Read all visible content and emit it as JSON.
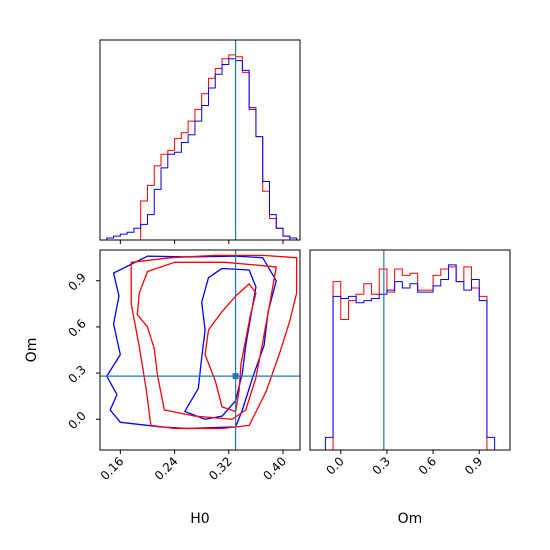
{
  "chart_data": {
    "type": "corner",
    "colors": {
      "series_a": "#ff0000",
      "series_b": "#0000ff",
      "truth": "#1f77b4",
      "axes": "#000000"
    },
    "truth": {
      "H0": 0.33,
      "Om": 0.28
    },
    "axes": {
      "H0": {
        "label": "H0",
        "range": [
          0.13,
          0.425
        ],
        "ticks": [
          0.16,
          0.24,
          0.32,
          0.4
        ],
        "tick_labels": [
          "0.16",
          "0.24",
          "0.32",
          "0.40"
        ]
      },
      "Om": {
        "label": "Om",
        "range": [
          -0.2,
          1.1
        ],
        "ticks": [
          0.0,
          0.3,
          0.6,
          0.9
        ],
        "tick_labels": [
          "0.0",
          "0.3",
          "0.6",
          "0.9"
        ]
      }
    },
    "hist_H0": {
      "bins": [
        0.13,
        0.14,
        0.15,
        0.16,
        0.17,
        0.18,
        0.19,
        0.2,
        0.21,
        0.22,
        0.23,
        0.24,
        0.25,
        0.26,
        0.27,
        0.28,
        0.29,
        0.3,
        0.31,
        0.32,
        0.33,
        0.34,
        0.35,
        0.36,
        0.37,
        0.38,
        0.39,
        0.4,
        0.41,
        0.42
      ],
      "series": [
        {
          "name": "series_a",
          "values": [
            0,
            0,
            0,
            0,
            0,
            0,
            0.2,
            0.28,
            0.38,
            0.44,
            0.46,
            0.52,
            0.55,
            0.61,
            0.67,
            0.75,
            0.83,
            0.88,
            0.93,
            0.95,
            0.94,
            0.86,
            0.68,
            0.53,
            0.25,
            0.11,
            0.06,
            0.02,
            0
          ]
        },
        {
          "name": "series_b",
          "values": [
            0,
            0.01,
            0.02,
            0.03,
            0.04,
            0.06,
            0.08,
            0.13,
            0.26,
            0.37,
            0.44,
            0.45,
            0.5,
            0.54,
            0.61,
            0.69,
            0.78,
            0.85,
            0.9,
            0.93,
            0.92,
            0.87,
            0.67,
            0.53,
            0.3,
            0.13,
            0.06,
            0.02,
            0.01
          ]
        }
      ]
    },
    "hist_Om": {
      "bins": [
        -0.1,
        -0.05,
        0.0,
        0.05,
        0.1,
        0.15,
        0.2,
        0.25,
        0.3,
        0.35,
        0.4,
        0.45,
        0.5,
        0.55,
        0.6,
        0.65,
        0.7,
        0.75,
        0.8,
        0.85,
        0.9,
        0.95,
        1.0
      ],
      "series": [
        {
          "name": "series_a",
          "values": [
            0,
            0.8,
            0.62,
            0.71,
            0.74,
            0.79,
            0.74,
            0.86,
            0.75,
            0.86,
            0.83,
            0.84,
            0.76,
            0.76,
            0.83,
            0.86,
            0.87,
            0.8,
            0.87,
            0.77,
            0.73,
            0
          ]
        },
        {
          "name": "series_b",
          "values": [
            0.06,
            0.73,
            0.72,
            0.73,
            0.7,
            0.71,
            0.72,
            0.74,
            0.76,
            0.8,
            0.77,
            0.79,
            0.75,
            0.75,
            0.78,
            0.81,
            0.88,
            0.8,
            0.76,
            0.81,
            0.71,
            0.06
          ]
        }
      ]
    },
    "contours": {
      "series_a": [
        [
          [
            0.176,
            1.02
          ],
          [
            0.235,
            1.05
          ],
          [
            0.3,
            1.065
          ],
          [
            0.37,
            1.065
          ],
          [
            0.42,
            1.05
          ],
          [
            0.42,
            0.82
          ],
          [
            0.41,
            0.64
          ],
          [
            0.395,
            0.43
          ],
          [
            0.375,
            0.18
          ],
          [
            0.35,
            -0.04
          ],
          [
            0.31,
            -0.06
          ],
          [
            0.24,
            -0.06
          ],
          [
            0.205,
            -0.04
          ],
          [
            0.198,
            0.2
          ],
          [
            0.188,
            0.47
          ],
          [
            0.176,
            0.75
          ]
        ],
        [
          [
            0.185,
            0.68
          ],
          [
            0.2,
            0.6
          ],
          [
            0.21,
            0.46
          ],
          [
            0.215,
            0.28
          ],
          [
            0.225,
            0.06
          ],
          [
            0.27,
            0.02
          ],
          [
            0.325,
            0.0
          ],
          [
            0.345,
            0.06
          ],
          [
            0.36,
            0.27
          ],
          [
            0.37,
            0.5
          ],
          [
            0.38,
            0.74
          ],
          [
            0.39,
            0.99
          ],
          [
            0.315,
            1.02
          ],
          [
            0.24,
            1.02
          ],
          [
            0.2,
            0.96
          ],
          [
            0.188,
            0.82
          ]
        ],
        [
          [
            0.29,
            0.58
          ],
          [
            0.31,
            0.7
          ],
          [
            0.33,
            0.8
          ],
          [
            0.35,
            0.88
          ],
          [
            0.36,
            0.82
          ],
          [
            0.352,
            0.68
          ],
          [
            0.345,
            0.52
          ],
          [
            0.338,
            0.36
          ],
          [
            0.335,
            0.18
          ],
          [
            0.33,
            0.05
          ],
          [
            0.31,
            0.08
          ],
          [
            0.3,
            0.25
          ],
          [
            0.285,
            0.42
          ]
        ]
      ],
      "series_b": [
        [
          [
            0.15,
            0.95
          ],
          [
            0.2,
            1.06
          ],
          [
            0.26,
            1.055
          ],
          [
            0.33,
            1.06
          ],
          [
            0.37,
            1.05
          ],
          [
            0.39,
            0.9
          ],
          [
            0.378,
            0.7
          ],
          [
            0.372,
            0.48
          ],
          [
            0.355,
            0.27
          ],
          [
            0.34,
            0.06
          ],
          [
            0.33,
            -0.05
          ],
          [
            0.26,
            -0.06
          ],
          [
            0.22,
            -0.05
          ],
          [
            0.16,
            -0.02
          ],
          [
            0.145,
            0.06
          ],
          [
            0.155,
            0.16
          ],
          [
            0.14,
            0.28
          ],
          [
            0.16,
            0.42
          ],
          [
            0.15,
            0.62
          ],
          [
            0.158,
            0.8
          ]
        ],
        [
          [
            0.29,
            0.92
          ],
          [
            0.31,
            0.98
          ],
          [
            0.35,
            0.97
          ],
          [
            0.36,
            0.86
          ],
          [
            0.352,
            0.66
          ],
          [
            0.345,
            0.48
          ],
          [
            0.34,
            0.3
          ],
          [
            0.33,
            0.12
          ],
          [
            0.31,
            0.02
          ],
          [
            0.285,
            0.0
          ],
          [
            0.255,
            0.05
          ],
          [
            0.275,
            0.2
          ],
          [
            0.28,
            0.4
          ],
          [
            0.285,
            0.58
          ],
          [
            0.28,
            0.76
          ]
        ]
      ]
    }
  }
}
